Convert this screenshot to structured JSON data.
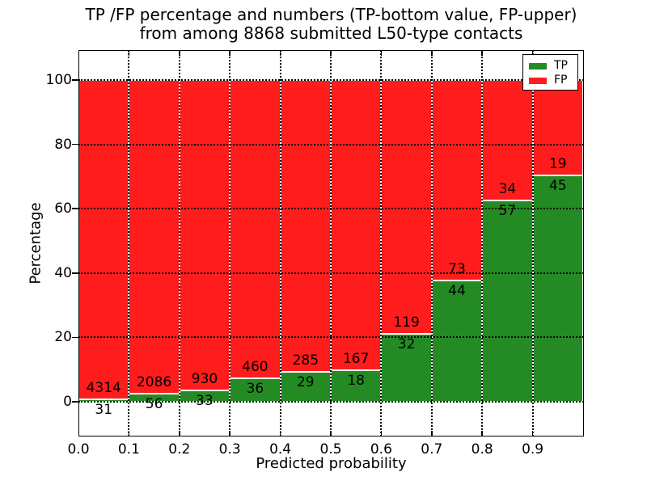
{
  "chart_data": {
    "type": "bar",
    "stacked": true,
    "normalized": "each bin stacked to 100%",
    "title_line1": "TP /FP percentage and numbers (TP-bottom value, FP-upper)",
    "title_line2": "from among 8868 submitted L50-type contacts",
    "xlabel": "Predicted probability",
    "ylabel": "Percentage",
    "total_submitted": 8868,
    "bin_width": 0.1,
    "bin_starts": [
      0.0,
      0.1,
      0.2,
      0.3,
      0.4,
      0.5,
      0.6,
      0.7,
      0.8,
      0.9
    ],
    "x_tick_labels": [
      "0.0",
      "0.1",
      "0.2",
      "0.3",
      "0.4",
      "0.5",
      "0.6",
      "0.7",
      "0.8",
      "0.9"
    ],
    "y_ticks": [
      0,
      20,
      40,
      60,
      80,
      100
    ],
    "y_tick_labels": [
      "0",
      "20",
      "40",
      "60",
      "80",
      "100"
    ],
    "xlim": [
      0.0,
      1.0
    ],
    "ylim": [
      -11,
      109
    ],
    "grid_style": "dotted",
    "series": [
      {
        "name": "TP",
        "color": "#248b24",
        "counts": [
          31,
          56,
          33,
          36,
          29,
          18,
          32,
          44,
          57,
          45
        ],
        "pct": [
          0.71,
          2.61,
          3.43,
          7.26,
          9.24,
          9.73,
          21.19,
          37.61,
          62.64,
          70.31
        ]
      },
      {
        "name": "FP",
        "color": "#ff1c1c",
        "counts": [
          4314,
          2086,
          930,
          460,
          285,
          167,
          119,
          73,
          34,
          19
        ],
        "pct": [
          99.29,
          97.39,
          96.57,
          92.74,
          90.76,
          90.27,
          78.81,
          62.39,
          37.36,
          29.69
        ]
      }
    ],
    "legend": {
      "position": "upper-right",
      "entries": [
        {
          "label": "TP",
          "color": "#248b24"
        },
        {
          "label": "FP",
          "color": "#ff1c1c"
        }
      ]
    }
  }
}
